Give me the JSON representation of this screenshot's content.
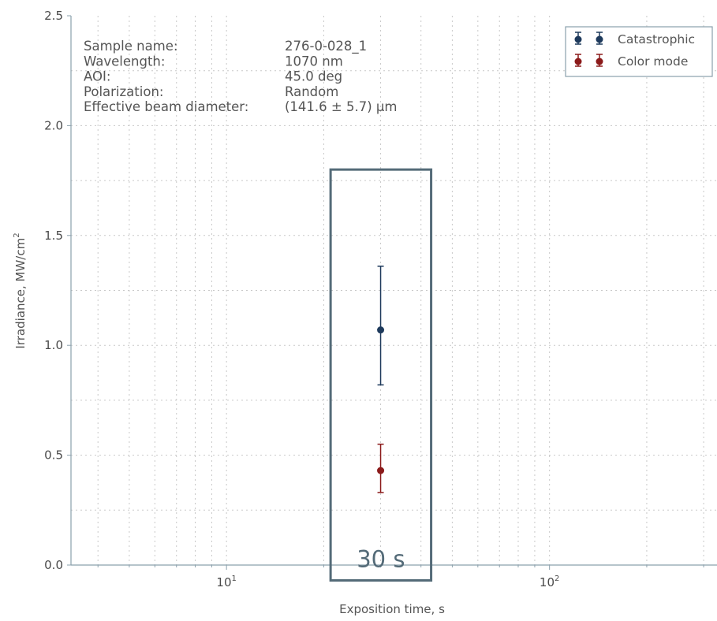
{
  "chart_data": {
    "type": "scatter",
    "xlabel": "Exposition time, s",
    "ylabel": "Irradiance, MW/cm",
    "ylabel_sup": "2",
    "xscale": "log",
    "xlim": [
      3.3,
      330
    ],
    "ylim": [
      0.0,
      2.5
    ],
    "y_ticks": [
      "0.0",
      "0.5",
      "1.0",
      "1.5",
      "2.0",
      "2.5"
    ],
    "x_ticks": [
      {
        "base": "10",
        "exp": "1",
        "value": 10
      },
      {
        "base": "10",
        "exp": "2",
        "value": 100
      }
    ],
    "grid": true,
    "legend_position": "top-right",
    "series": [
      {
        "name": "Catastrophic",
        "color": "#1e3a5c",
        "points": [
          {
            "x": 30,
            "y": 1.07,
            "yerr_low": 0.82,
            "yerr_high": 1.36
          }
        ]
      },
      {
        "name": "Color mode",
        "color": "#8b1a1a",
        "points": [
          {
            "x": 30,
            "y": 0.43,
            "yerr_low": 0.33,
            "yerr_high": 0.55
          }
        ]
      }
    ],
    "annotations": {
      "sample_info": [
        {
          "label": "Sample name:",
          "value": "276-0-028_1"
        },
        {
          "label": "Wavelength:",
          "value": "1070 nm"
        },
        {
          "label": "AOI:",
          "value": "45.0 deg"
        },
        {
          "label": "Polarization:",
          "value": "Random"
        },
        {
          "label": "Effective beam diameter:",
          "value": "(141.6 ± 5.7) μm"
        }
      ],
      "highlight_box": {
        "label": "30 s",
        "x_from": 21,
        "x_to": 43,
        "y_from": -0.07,
        "y_to": 1.8,
        "color": "#546b78"
      }
    }
  }
}
